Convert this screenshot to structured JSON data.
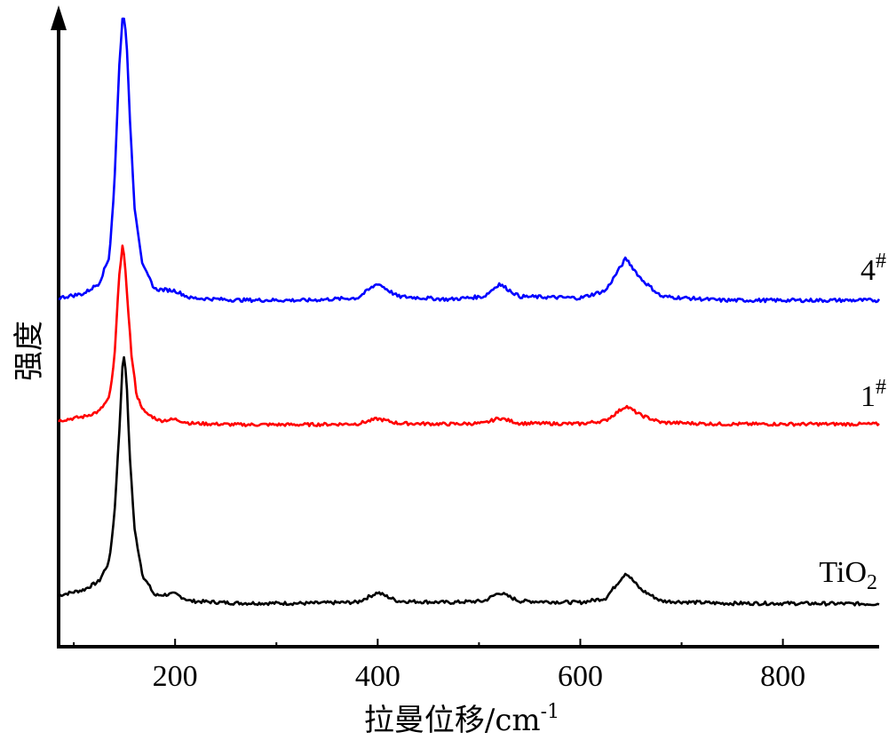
{
  "chart_data": {
    "type": "line",
    "xlabel": "拉曼位移/cm",
    "xlabel_superscript": "-1",
    "ylabel": "强度",
    "xlim": [
      85,
      895
    ],
    "x_ticks": [
      200,
      400,
      600,
      800
    ],
    "x_minor_ticks": [
      100,
      300,
      500,
      700
    ],
    "y_ticks_shown": false,
    "grid": false,
    "series": [
      {
        "name": "TiO",
        "name_subscript": "2",
        "color": "#000000",
        "points": [
          [
            85,
            0.04
          ],
          [
            110,
            0.06
          ],
          [
            125,
            0.09
          ],
          [
            135,
            0.16
          ],
          [
            140,
            0.32
          ],
          [
            145,
            0.62
          ],
          [
            148,
            0.85
          ],
          [
            150,
            0.88
          ],
          [
            152,
            0.8
          ],
          [
            155,
            0.55
          ],
          [
            160,
            0.27
          ],
          [
            168,
            0.11
          ],
          [
            180,
            0.04
          ],
          [
            200,
            0.045
          ],
          [
            215,
            0.02
          ],
          [
            260,
            0.013
          ],
          [
            330,
            0.012
          ],
          [
            380,
            0.016
          ],
          [
            400,
            0.05
          ],
          [
            420,
            0.02
          ],
          [
            470,
            0.015
          ],
          [
            505,
            0.02
          ],
          [
            520,
            0.05
          ],
          [
            540,
            0.02
          ],
          [
            600,
            0.015
          ],
          [
            625,
            0.03
          ],
          [
            645,
            0.12
          ],
          [
            660,
            0.06
          ],
          [
            680,
            0.02
          ],
          [
            740,
            0.012
          ],
          [
            800,
            0.012
          ],
          [
            895,
            0.01
          ]
        ]
      },
      {
        "name": "1",
        "name_superscript": "#",
        "color": "#ff0000",
        "points": [
          [
            85,
            0.025
          ],
          [
            110,
            0.04
          ],
          [
            125,
            0.06
          ],
          [
            135,
            0.11
          ],
          [
            140,
            0.25
          ],
          [
            145,
            0.58
          ],
          [
            148,
            0.68
          ],
          [
            150,
            0.63
          ],
          [
            153,
            0.48
          ],
          [
            157,
            0.27
          ],
          [
            162,
            0.12
          ],
          [
            170,
            0.055
          ],
          [
            185,
            0.025
          ],
          [
            200,
            0.03
          ],
          [
            215,
            0.015
          ],
          [
            260,
            0.01
          ],
          [
            330,
            0.01
          ],
          [
            380,
            0.013
          ],
          [
            400,
            0.032
          ],
          [
            420,
            0.015
          ],
          [
            470,
            0.012
          ],
          [
            505,
            0.015
          ],
          [
            520,
            0.035
          ],
          [
            540,
            0.015
          ],
          [
            600,
            0.013
          ],
          [
            625,
            0.025
          ],
          [
            645,
            0.08
          ],
          [
            660,
            0.045
          ],
          [
            680,
            0.018
          ],
          [
            740,
            0.012
          ],
          [
            800,
            0.012
          ],
          [
            895,
            0.012
          ]
        ]
      },
      {
        "name": "4",
        "name_superscript": "#",
        "color": "#0000ff",
        "points": [
          [
            85,
            0.02
          ],
          [
            110,
            0.035
          ],
          [
            125,
            0.07
          ],
          [
            135,
            0.16
          ],
          [
            140,
            0.4
          ],
          [
            145,
            0.82
          ],
          [
            148,
            0.97
          ],
          [
            150,
            0.98
          ],
          [
            152,
            0.9
          ],
          [
            155,
            0.66
          ],
          [
            160,
            0.33
          ],
          [
            168,
            0.13
          ],
          [
            180,
            0.05
          ],
          [
            200,
            0.045
          ],
          [
            215,
            0.02
          ],
          [
            260,
            0.013
          ],
          [
            330,
            0.012
          ],
          [
            380,
            0.02
          ],
          [
            400,
            0.07
          ],
          [
            420,
            0.025
          ],
          [
            470,
            0.015
          ],
          [
            505,
            0.025
          ],
          [
            520,
            0.068
          ],
          [
            540,
            0.025
          ],
          [
            600,
            0.02
          ],
          [
            625,
            0.045
          ],
          [
            645,
            0.155
          ],
          [
            660,
            0.085
          ],
          [
            680,
            0.025
          ],
          [
            740,
            0.012
          ],
          [
            800,
            0.012
          ],
          [
            895,
            0.012
          ]
        ]
      }
    ]
  }
}
